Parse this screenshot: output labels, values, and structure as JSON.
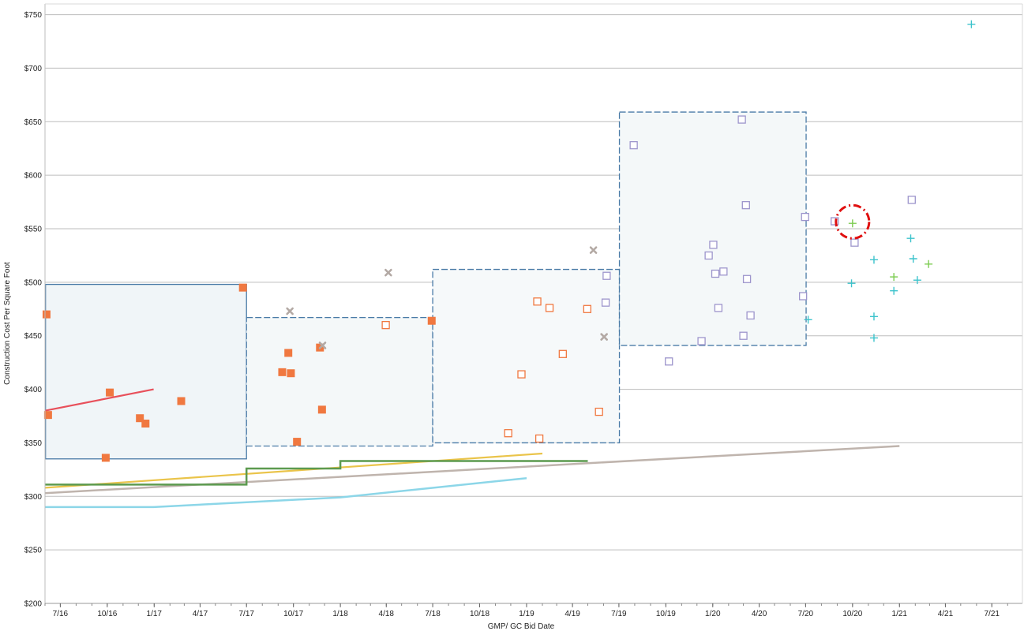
{
  "chart_data": {
    "type": "scatter",
    "title": "",
    "xlabel": "GMP/ GC Bid Date",
    "ylabel": "Construction Cost Per Square Foot",
    "xlim": [
      "2016-06-01",
      "2021-08-30"
    ],
    "ylim": [
      200,
      760
    ],
    "grid": true,
    "x_ticks": [
      {
        "date": "2016-07-01",
        "label": "7/16"
      },
      {
        "date": "2016-10-01",
        "label": "10/16"
      },
      {
        "date": "2017-01-01",
        "label": "1/17"
      },
      {
        "date": "2017-04-01",
        "label": "4/17"
      },
      {
        "date": "2017-07-01",
        "label": "7/17"
      },
      {
        "date": "2017-10-01",
        "label": "10/17"
      },
      {
        "date": "2018-01-01",
        "label": "1/18"
      },
      {
        "date": "2018-04-01",
        "label": "4/18"
      },
      {
        "date": "2018-07-01",
        "label": "7/18"
      },
      {
        "date": "2018-10-01",
        "label": "10/18"
      },
      {
        "date": "2019-01-01",
        "label": "1/19"
      },
      {
        "date": "2019-04-01",
        "label": "4/19"
      },
      {
        "date": "2019-07-01",
        "label": "7/19"
      },
      {
        "date": "2019-10-01",
        "label": "10/19"
      },
      {
        "date": "2020-01-01",
        "label": "1/20"
      },
      {
        "date": "2020-04-01",
        "label": "4/20"
      },
      {
        "date": "2020-07-01",
        "label": "7/20"
      },
      {
        "date": "2020-10-01",
        "label": "10/20"
      },
      {
        "date": "2021-01-01",
        "label": "1/21"
      },
      {
        "date": "2021-04-01",
        "label": "4/21"
      },
      {
        "date": "2021-07-01",
        "label": "7/21"
      }
    ],
    "y_ticks": [
      {
        "value": 200,
        "label": "$200"
      },
      {
        "value": 250,
        "label": "$250"
      },
      {
        "value": 300,
        "label": "$300"
      },
      {
        "value": 350,
        "label": "$350"
      },
      {
        "value": 400,
        "label": "$400"
      },
      {
        "value": 450,
        "label": "$450"
      },
      {
        "value": 500,
        "label": "$500"
      },
      {
        "value": 550,
        "label": "$550"
      },
      {
        "value": 600,
        "label": "$600"
      },
      {
        "value": 650,
        "label": "$650"
      },
      {
        "value": 700,
        "label": "$700"
      },
      {
        "value": 750,
        "label": "$750"
      }
    ],
    "boxes": [
      {
        "x0": "2016-06-02",
        "x1": "2017-07-01",
        "y0": 335,
        "y1": 498,
        "style": "solid",
        "color": "#4a7ba7",
        "fill": "#f0f5f8"
      },
      {
        "x0": "2017-07-01",
        "x1": "2018-07-01",
        "y0": 347,
        "y1": 467,
        "style": "dashed",
        "color": "#4a7ba7",
        "fill": "#f4f8f9"
      },
      {
        "x0": "2018-07-01",
        "x1": "2019-07-02",
        "y0": 350,
        "y1": 512,
        "style": "dashed",
        "color": "#4a7ba7",
        "fill": "#f6f9fa"
      },
      {
        "x0": "2019-07-02",
        "x1": "2020-07-02",
        "y0": 441,
        "y1": 659,
        "style": "dashed",
        "color": "#4a7ba7",
        "fill": "#f4f8f9"
      }
    ],
    "series": [
      {
        "marker": "filled-square",
        "color": "#f07840",
        "points": [
          {
            "x": "2016-06-04",
            "y": 470
          },
          {
            "x": "2016-06-07",
            "y": 376
          },
          {
            "x": "2016-09-28",
            "y": 336
          },
          {
            "x": "2016-10-06",
            "y": 397
          },
          {
            "x": "2016-12-04",
            "y": 373
          },
          {
            "x": "2016-12-15",
            "y": 368
          },
          {
            "x": "2017-02-23",
            "y": 389
          },
          {
            "x": "2017-06-24",
            "y": 495
          },
          {
            "x": "2017-09-09",
            "y": 416
          },
          {
            "x": "2017-09-21",
            "y": 434
          },
          {
            "x": "2017-09-26",
            "y": 415
          },
          {
            "x": "2017-10-08",
            "y": 351
          },
          {
            "x": "2017-11-22",
            "y": 439
          },
          {
            "x": "2017-11-26",
            "y": 381
          },
          {
            "x": "2018-06-29",
            "y": 464
          }
        ]
      },
      {
        "marker": "open-square",
        "color": "#f07840",
        "points": [
          {
            "x": "2018-03-31",
            "y": 460
          },
          {
            "x": "2018-11-26",
            "y": 359
          },
          {
            "x": "2018-12-22",
            "y": 414
          },
          {
            "x": "2019-01-22",
            "y": 482
          },
          {
            "x": "2019-01-26",
            "y": 354
          },
          {
            "x": "2019-02-15",
            "y": 476
          },
          {
            "x": "2019-03-13",
            "y": 433
          },
          {
            "x": "2019-04-30",
            "y": 475
          },
          {
            "x": "2019-05-23",
            "y": 379
          }
        ]
      },
      {
        "marker": "x",
        "color": "#b3a9a4",
        "points": [
          {
            "x": "2017-09-24",
            "y": 473
          },
          {
            "x": "2017-11-27",
            "y": 441
          },
          {
            "x": "2018-04-05",
            "y": 509
          },
          {
            "x": "2019-05-12",
            "y": 530
          },
          {
            "x": "2019-06-02",
            "y": 449
          }
        ]
      },
      {
        "marker": "open-square",
        "color": "#9d95cc",
        "points": [
          {
            "x": "2019-06-05",
            "y": 481
          },
          {
            "x": "2019-06-07",
            "y": 506
          },
          {
            "x": "2019-07-30",
            "y": 628
          },
          {
            "x": "2019-10-07",
            "y": 426
          },
          {
            "x": "2019-12-10",
            "y": 445
          },
          {
            "x": "2019-12-24",
            "y": 525
          },
          {
            "x": "2020-01-02",
            "y": 535
          },
          {
            "x": "2020-01-06",
            "y": 508
          },
          {
            "x": "2020-01-12",
            "y": 476
          },
          {
            "x": "2020-01-22",
            "y": 510
          },
          {
            "x": "2020-02-27",
            "y": 652
          },
          {
            "x": "2020-03-01",
            "y": 450
          },
          {
            "x": "2020-03-06",
            "y": 572
          },
          {
            "x": "2020-03-08",
            "y": 503
          },
          {
            "x": "2020-03-15",
            "y": 469
          },
          {
            "x": "2020-06-26",
            "y": 487
          },
          {
            "x": "2020-06-30",
            "y": 561
          },
          {
            "x": "2020-08-27",
            "y": 557
          },
          {
            "x": "2020-10-05",
            "y": 537
          },
          {
            "x": "2021-01-25",
            "y": 577
          }
        ]
      },
      {
        "marker": "plus",
        "color": "#3cc3cc",
        "points": [
          {
            "x": "2020-07-06",
            "y": 465
          },
          {
            "x": "2020-09-29",
            "y": 499
          },
          {
            "x": "2020-11-12",
            "y": 521
          },
          {
            "x": "2020-11-12",
            "y": 468
          },
          {
            "x": "2020-11-12",
            "y": 448
          },
          {
            "x": "2020-12-21",
            "y": 492
          },
          {
            "x": "2021-01-23",
            "y": 541
          },
          {
            "x": "2021-01-28",
            "y": 522
          },
          {
            "x": "2021-02-05",
            "y": 502
          },
          {
            "x": "2021-05-22",
            "y": 741
          }
        ]
      },
      {
        "marker": "plus",
        "color": "#7ccc50",
        "points": [
          {
            "x": "2020-10-01",
            "y": 555
          },
          {
            "x": "2020-12-21",
            "y": 505
          },
          {
            "x": "2021-02-27",
            "y": 517
          }
        ]
      }
    ],
    "lines": [
      {
        "color": "#e8505b",
        "width": 2.2,
        "shape": "straight",
        "points": [
          {
            "x": "2016-06-01",
            "y": 380
          },
          {
            "x": "2016-12-31",
            "y": 400
          }
        ]
      },
      {
        "color": "#eac44a",
        "width": 2.2,
        "shape": "straight",
        "points": [
          {
            "x": "2016-06-01",
            "y": 308
          },
          {
            "x": "2019-02-01",
            "y": 340
          }
        ]
      },
      {
        "color": "#bfb4ad",
        "width": 2.5,
        "shape": "straight",
        "points": [
          {
            "x": "2016-06-01",
            "y": 303
          },
          {
            "x": "2021-01-01",
            "y": 347
          }
        ]
      },
      {
        "color": "#8cd6e8",
        "width": 2.5,
        "shape": "straight",
        "points": [
          {
            "x": "2016-06-01",
            "y": 290
          },
          {
            "x": "2016-12-31",
            "y": 290
          },
          {
            "x": "2018-01-01",
            "y": 299
          },
          {
            "x": "2019-01-01",
            "y": 317
          }
        ]
      },
      {
        "color": "#5c9a4f",
        "width": 2.5,
        "shape": "step",
        "points": [
          {
            "x": "2016-06-01",
            "y": 311
          },
          {
            "x": "2017-07-01",
            "y": 311
          },
          {
            "x": "2017-07-01",
            "y": 326
          },
          {
            "x": "2018-01-01",
            "y": 326
          },
          {
            "x": "2018-01-01",
            "y": 333
          },
          {
            "x": "2019-05-01",
            "y": 333
          }
        ]
      }
    ],
    "annotations": [
      {
        "type": "circle",
        "x": "2020-10-01",
        "y": 555,
        "style": "dash-dot",
        "color": "#e01010"
      }
    ]
  }
}
